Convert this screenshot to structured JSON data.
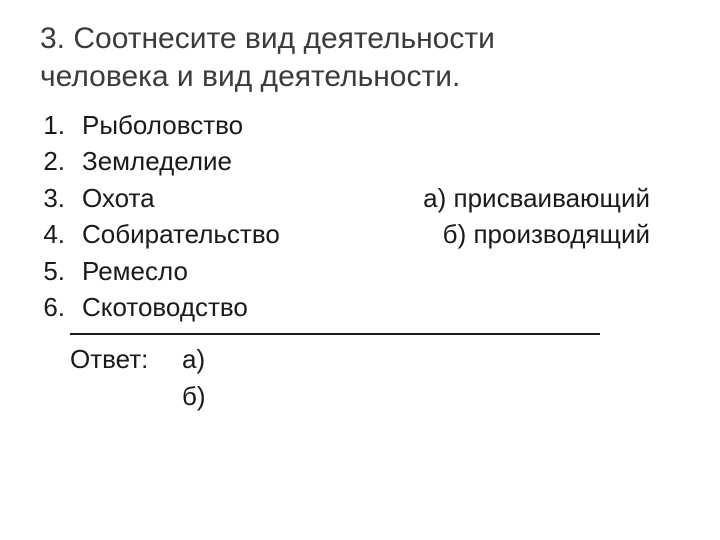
{
  "title_line1": "3. Соотнесите вид деятельности",
  "title_line2": "человека и вид деятельности.",
  "items": [
    {
      "num": "1.",
      "text": "Рыболовство"
    },
    {
      "num": "2.",
      "text": "Земледелие"
    },
    {
      "num": "3.",
      "text": "Охота"
    },
    {
      "num": "4.",
      "text": "Собирательство"
    },
    {
      "num": "5.",
      "text": "Ремесло"
    },
    {
      "num": "6.",
      "text": "Скотоводство"
    }
  ],
  "options": {
    "a": "а) присваивающий",
    "b": "б) производящий"
  },
  "answer_label": "Ответ:",
  "answer_a": "а)",
  "answer_b": "б)",
  "styling": {
    "background_color": "#ffffff",
    "title_color": "#3b3b3b",
    "text_color": "#1a1a1a",
    "title_fontsize": 30,
    "body_fontsize": 26,
    "font_family": "Arial"
  }
}
